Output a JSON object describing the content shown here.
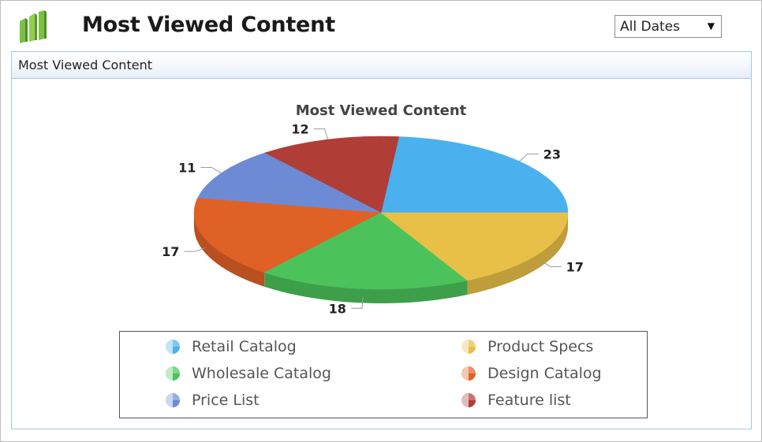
{
  "header": {
    "title": "Most Viewed Content"
  },
  "date_filter": {
    "selected": "All Dates",
    "arrow": "▼"
  },
  "panel": {
    "title": "Most Viewed Content"
  },
  "colors": {
    "Retail Catalog": "#4ab1ee",
    "Product Specs": "#e8c047",
    "Wholesale Catalog": "#4cc25a",
    "Design Catalog": "#e06126",
    "Price List": "#6d8bd4",
    "Feature list": "#b03d36"
  },
  "chart_data": {
    "type": "pie",
    "title": "Most Viewed Content",
    "labels": [
      "Retail Catalog",
      "Feature list",
      "Price List",
      "Design Catalog",
      "Wholesale Catalog",
      "Product Specs"
    ],
    "values": [
      23,
      12,
      11,
      17,
      18,
      17
    ],
    "legend": {
      "placement": "bottom",
      "entries": [
        "Retail Catalog",
        "Product Specs",
        "Wholesale Catalog",
        "Design Catalog",
        "Price List",
        "Feature list"
      ]
    }
  }
}
